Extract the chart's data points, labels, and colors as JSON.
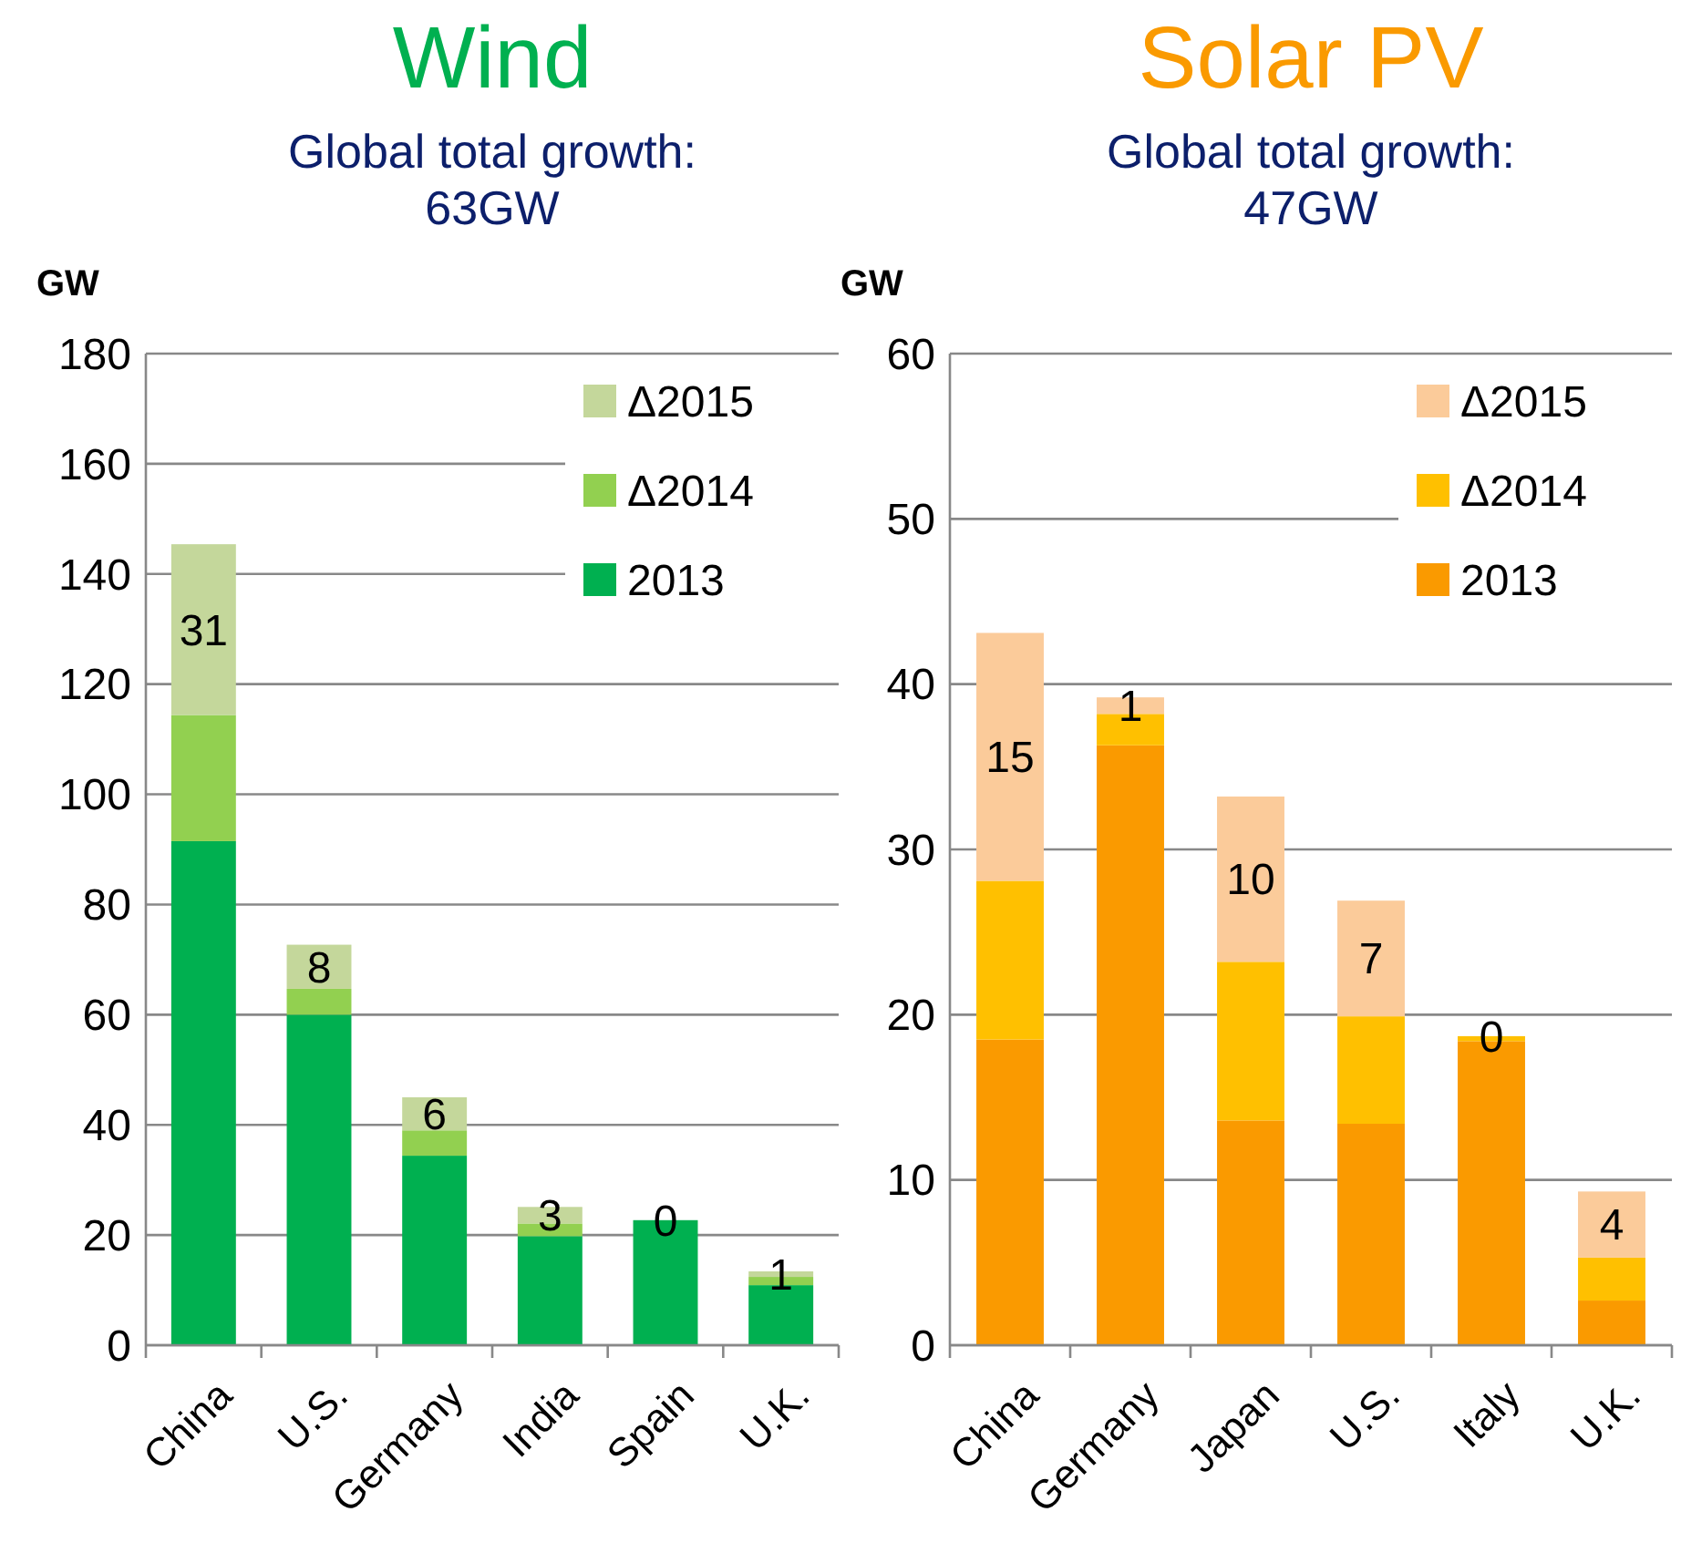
{
  "chart_data": [
    {
      "type": "bar",
      "title": "Wind",
      "subtitle": "Global total growth:\n63GW",
      "ylabel": "GW",
      "categories": [
        "China",
        "U.S.",
        "Germany",
        "India",
        "Spain",
        "U.K."
      ],
      "stacked": true,
      "ylim": [
        0,
        180
      ],
      "yticks": [
        0,
        20,
        40,
        60,
        80,
        100,
        120,
        140,
        160,
        180
      ],
      "grid": "y",
      "legend": "top right",
      "series": [
        {
          "name": "2013",
          "color": "#00b050",
          "values": [
            91.5,
            60,
            34.4,
            19.8,
            22.7,
            10.9
          ]
        },
        {
          "name": "Δ2014",
          "color": "#92d050",
          "values": [
            22.9,
            4.7,
            4.6,
            2.3,
            0,
            1.5
          ]
        },
        {
          "name": "Δ2015",
          "color": "#c4d79b",
          "values": [
            31,
            8,
            6,
            3,
            0,
            1
          ],
          "value_labels": [
            "31",
            "8",
            "6",
            "3",
            "0",
            "1"
          ]
        }
      ]
    },
    {
      "type": "bar",
      "title": "Solar PV",
      "subtitle": "Global total growth:\n47GW",
      "ylabel": "GW",
      "categories": [
        "China",
        "Germany",
        "Japan",
        "U.S.",
        "Italy",
        "U.K."
      ],
      "stacked": true,
      "ylim": [
        0,
        60
      ],
      "yticks": [
        0,
        10,
        20,
        30,
        40,
        50,
        60
      ],
      "grid": "y",
      "legend": "top right",
      "series": [
        {
          "name": "2013",
          "color": "#fa9a00",
          "values": [
            18.5,
            36.3,
            13.6,
            13.4,
            18.4,
            2.7
          ]
        },
        {
          "name": "Δ2014",
          "color": "#ffc000",
          "values": [
            9.6,
            1.9,
            9.6,
            6.5,
            0.3,
            2.6
          ]
        },
        {
          "name": "Δ2015",
          "color": "#fbcb9a",
          "values": [
            15,
            1,
            10,
            7,
            0,
            4
          ],
          "value_labels": [
            "15",
            "1",
            "10",
            "7",
            "0",
            "4"
          ]
        }
      ]
    }
  ]
}
